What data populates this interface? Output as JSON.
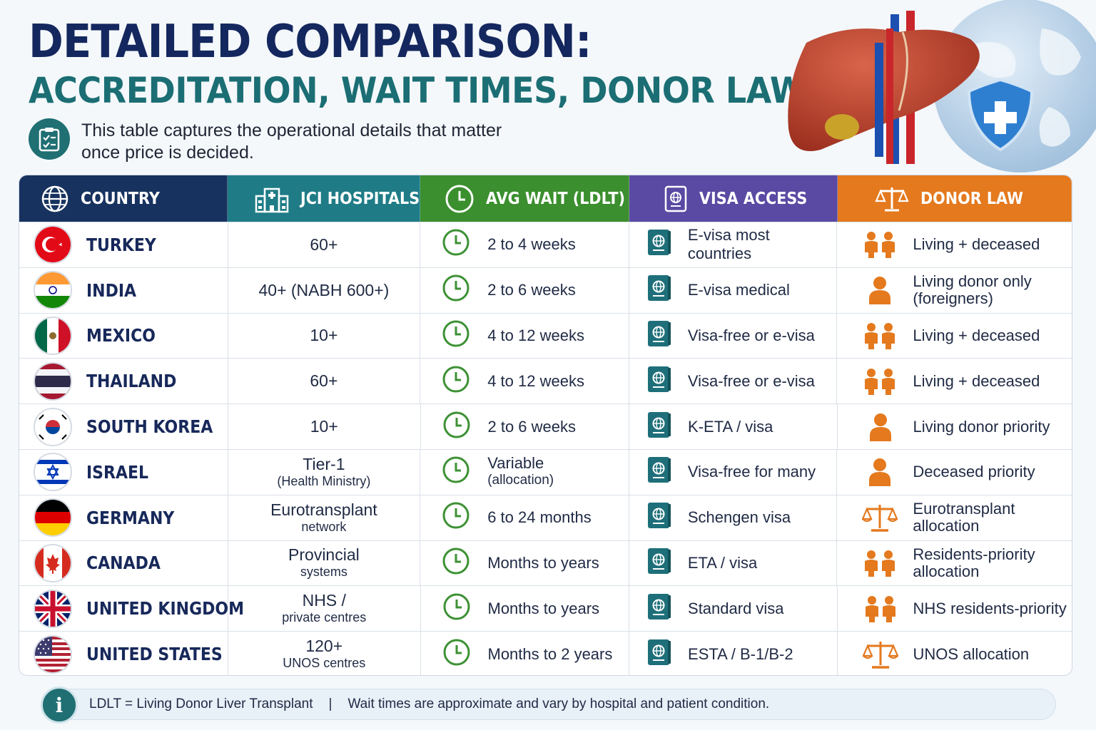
{
  "header": {
    "title": "DETAILED COMPARISON:",
    "subtitle": "ACCREDITATION, WAIT TIMES, DONOR LAWS",
    "intro_line1": "This table captures the operational details that matter",
    "intro_line2": "once price is decided.",
    "intro_icon": "clipboard-checklist-icon"
  },
  "illustration": {
    "elements": [
      "liver-icon",
      "globe-icon",
      "shield-cross-icon"
    ]
  },
  "colors": {
    "country_header": "#17325f",
    "jci_header": "#1f7c86",
    "wait_header": "#3b8f2e",
    "visa_header": "#5a4aa3",
    "donor_header": "#e4791e",
    "title_navy": "#14275e",
    "subtitle_teal": "#1b6e73"
  },
  "table": {
    "headers": {
      "country": "COUNTRY",
      "jci": "JCI HOSPITALS",
      "wait": "AVG WAIT (LDLT)",
      "visa": "VISA ACCESS",
      "donor": "DONOR LAW"
    },
    "rows": [
      {
        "country": "TURKEY",
        "flag": "turkey-flag",
        "jci": "60+",
        "jci_sub": "",
        "wait": "2 to 4 weeks",
        "wait_sub": "",
        "visa": "E-visa most countries",
        "donor": "Living + deceased",
        "donor_sub": "",
        "donor_icon": "two-people-icon"
      },
      {
        "country": "INDIA",
        "flag": "india-flag",
        "jci": "40+ (NABH 600+)",
        "jci_sub": "",
        "wait": "2 to 6 weeks",
        "wait_sub": "",
        "visa": "E-visa medical",
        "donor": "Living donor only",
        "donor_sub": "(foreigners)",
        "donor_icon": "person-icon"
      },
      {
        "country": "MEXICO",
        "flag": "mexico-flag",
        "jci": "10+",
        "jci_sub": "",
        "wait": "4 to 12 weeks",
        "wait_sub": "",
        "visa": "Visa-free or e-visa",
        "donor": "Living + deceased",
        "donor_sub": "",
        "donor_icon": "two-people-icon"
      },
      {
        "country": "THAILAND",
        "flag": "thailand-flag",
        "jci": "60+",
        "jci_sub": "",
        "wait": "4 to 12 weeks",
        "wait_sub": "",
        "visa": "Visa-free or e-visa",
        "donor": "Living + deceased",
        "donor_sub": "",
        "donor_icon": "two-people-icon"
      },
      {
        "country": "SOUTH KOREA",
        "flag": "south-korea-flag",
        "jci": "10+",
        "jci_sub": "",
        "wait": "2 to 6 weeks",
        "wait_sub": "",
        "visa": "K-ETA / visa",
        "donor": "Living donor priority",
        "donor_sub": "",
        "donor_icon": "person-icon"
      },
      {
        "country": "ISRAEL",
        "flag": "israel-flag",
        "jci": "Tier-1",
        "jci_sub": "(Health Ministry)",
        "wait": "Variable",
        "wait_sub": "(allocation)",
        "visa": "Visa-free for many",
        "donor": "Deceased priority",
        "donor_sub": "",
        "donor_icon": "person-icon"
      },
      {
        "country": "GERMANY",
        "flag": "germany-flag",
        "jci": "Eurotransplant",
        "jci_sub": "network",
        "wait": "6 to 24 months",
        "wait_sub": "",
        "visa": "Schengen visa",
        "donor": "Eurotransplant",
        "donor_sub": "allocation",
        "donor_icon": "scales-icon"
      },
      {
        "country": "CANADA",
        "flag": "canada-flag",
        "jci": "Provincial",
        "jci_sub": "systems",
        "wait": "Months to years",
        "wait_sub": "",
        "visa": "ETA / visa",
        "donor": "Residents-priority",
        "donor_sub": "allocation",
        "donor_icon": "two-people-icon"
      },
      {
        "country": "UNITED KINGDOM",
        "flag": "united-kingdom-flag",
        "jci": "NHS /",
        "jci_sub": "private centres",
        "wait": "Months to years",
        "wait_sub": "",
        "visa": "Standard visa",
        "donor": "NHS residents-priority",
        "donor_sub": "",
        "donor_icon": "two-people-icon"
      },
      {
        "country": "UNITED STATES",
        "flag": "united-states-flag",
        "jci": "120+",
        "jci_sub": "UNOS centres",
        "wait": "Months to 2 years",
        "wait_sub": "",
        "visa": "ESTA / B-1/B-2",
        "donor": "UNOS allocation",
        "donor_sub": "",
        "donor_icon": "scales-icon"
      }
    ]
  },
  "footer": {
    "icon": "info-icon",
    "note1": "LDLT = Living Donor Liver Transplant",
    "separator": "|",
    "note2": "Wait times are approximate and vary by hospital and patient condition."
  }
}
